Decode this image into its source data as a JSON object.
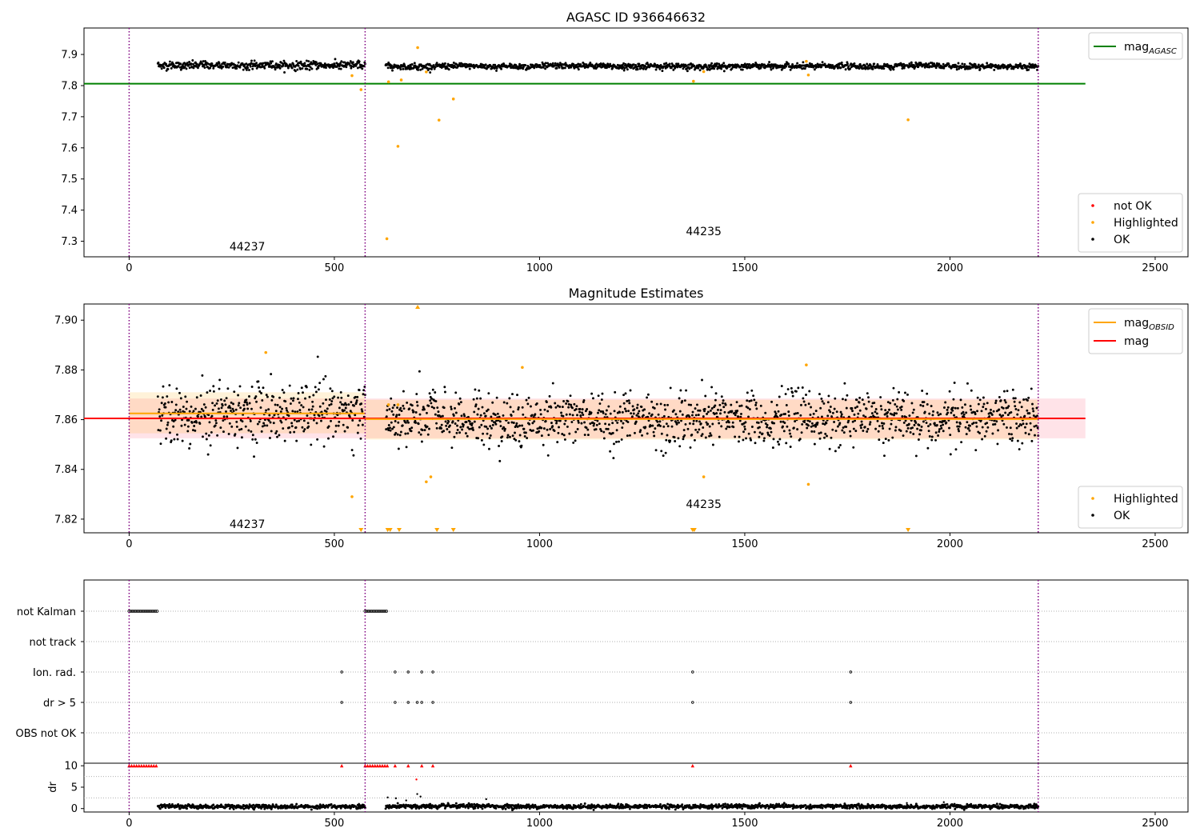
{
  "chart_data": [
    {
      "type": "scatter",
      "title": "AGASC ID 936646632",
      "xlim": [
        -110,
        2580
      ],
      "ylim": [
        7.25,
        7.985
      ],
      "xticks": [
        0,
        500,
        1000,
        1500,
        2000,
        2500
      ],
      "yticks": [
        7.3,
        7.4,
        7.5,
        7.6,
        7.7,
        7.8,
        7.9
      ],
      "grid": false,
      "obs_boundaries": [
        0,
        575,
        2215
      ],
      "obs_labels": [
        {
          "text": "44237",
          "x": 288,
          "y": 7.27
        },
        {
          "text": "44235",
          "x": 1400,
          "y": 7.32
        }
      ],
      "lines": [
        {
          "name": "mag_AGASC",
          "x": [
            -110,
            2330
          ],
          "y": [
            7.806,
            7.806
          ],
          "color": "#008000"
        }
      ],
      "ok_segments": [
        {
          "x0": 70,
          "x1": 575,
          "center": 7.865,
          "noise": 0.008,
          "count": 430
        },
        {
          "x0": 625,
          "x1": 2215,
          "center": 7.862,
          "noise": 0.006,
          "count": 1350
        }
      ],
      "highlighted_points": {
        "x": [
          543,
          565,
          628,
          632,
          655,
          663,
          703,
          724,
          755,
          790,
          1375,
          1400,
          1650,
          1655,
          1898
        ],
        "y": [
          7.832,
          7.787,
          7.308,
          7.812,
          7.605,
          7.818,
          7.922,
          7.844,
          7.689,
          7.757,
          7.814,
          7.845,
          7.878,
          7.834,
          7.69
        ]
      },
      "legend_lines": [
        {
          "label": "mag",
          "sub": "AGASC",
          "color": "#008000"
        }
      ],
      "legend_lines_position": "upper right",
      "legend_markers": [
        {
          "label": "not OK",
          "color": "#ff0000"
        },
        {
          "label": "Highlighted",
          "color": "#ffa500"
        },
        {
          "label": "OK",
          "color": "#000000"
        }
      ],
      "legend_markers_position": "lower right"
    },
    {
      "type": "scatter",
      "title": "Magnitude Estimates",
      "xlim": [
        -110,
        2580
      ],
      "ylim": [
        7.8145,
        7.9065
      ],
      "xticks": [
        0,
        500,
        1000,
        1500,
        2000,
        2500
      ],
      "yticks": [
        7.82,
        7.84,
        7.86,
        7.88,
        7.9
      ],
      "ytick_labels": [
        "7.82",
        "7.84",
        "7.86",
        "7.88",
        "7.90"
      ],
      "grid": false,
      "obs_boundaries": [
        0,
        575,
        2215
      ],
      "obs_labels": [
        {
          "text": "44237",
          "x": 288,
          "y": 7.8165
        },
        {
          "text": "44235",
          "x": 1400,
          "y": 7.8245
        }
      ],
      "bands": [
        {
          "x0": 0,
          "x1": 2330,
          "y0": 7.8525,
          "y1": 7.8685,
          "color": "#ffc0cb",
          "alpha": 0.45
        },
        {
          "x0": 0,
          "x1": 575,
          "y0": 7.8545,
          "y1": 7.871,
          "color": "#ffa500",
          "alpha": 0.15
        },
        {
          "x0": 575,
          "x1": 2215,
          "y0": 7.852,
          "y1": 7.868,
          "color": "#ffa500",
          "alpha": 0.15
        }
      ],
      "lines": [
        {
          "name": "mag",
          "x": [
            -110,
            2330
          ],
          "y": [
            7.8605,
            7.8605
          ],
          "color": "#ff0000"
        },
        {
          "name": "mag_OBSID",
          "x": [
            0,
            575
          ],
          "y": [
            7.8625,
            7.8625
          ],
          "color": "#ffa500"
        },
        {
          "name": "mag_OBSID",
          "x": [
            575,
            2215
          ],
          "y": [
            7.8602,
            7.8602
          ],
          "color": "#ffa500"
        }
      ],
      "ok_segments": [
        {
          "x0": 70,
          "x1": 575,
          "center": 7.8625,
          "noise": 0.0075,
          "count": 430
        },
        {
          "x0": 625,
          "x1": 2215,
          "center": 7.8602,
          "noise": 0.0065,
          "count": 1350
        }
      ],
      "highlighted_points": {
        "x": [
          333,
          543,
          632,
          655,
          724,
          735,
          958,
          1400,
          1650,
          1655
        ],
        "y": [
          7.887,
          7.829,
          7.866,
          7.866,
          7.835,
          7.837,
          7.881,
          7.837,
          7.882,
          7.834
        ]
      },
      "clipped_low_x": [
        565,
        630,
        636,
        658,
        750,
        790,
        1373,
        1377,
        1898
      ],
      "clipped_high_x": [
        703
      ],
      "legend_lines": [
        {
          "label": "mag",
          "sub": "OBSID",
          "color": "#ffa500"
        },
        {
          "label": "mag",
          "sub": "",
          "color": "#ff0000"
        }
      ],
      "legend_lines_position": "upper right",
      "legend_markers": [
        {
          "label": "Highlighted",
          "color": "#ffa500"
        },
        {
          "label": "OK",
          "color": "#000000"
        }
      ],
      "legend_markers_position": "lower right"
    },
    {
      "type": "scatter",
      "title": "",
      "xlim": [
        -110,
        2580
      ],
      "grid": true,
      "obs_boundaries": [
        0,
        575,
        2215
      ],
      "flag_rows": [
        {
          "label": "not Kalman",
          "ranges": [
            [
              0,
              68
            ],
            [
              575,
              630
            ]
          ],
          "x": []
        },
        {
          "label": "not track",
          "ranges": [],
          "x": []
        },
        {
          "label": "Ion. rad.",
          "ranges": [],
          "x": [
            518,
            648,
            680,
            713,
            740,
            1373,
            1758
          ]
        },
        {
          "label": "dr > 5",
          "ranges": [],
          "x": [
            518,
            648,
            680,
            702,
            713,
            740,
            1373,
            1758
          ]
        },
        {
          "label": "OBS not OK",
          "ranges": [],
          "x": []
        }
      ],
      "flag_marker_color": "#000000"
    },
    {
      "type": "scatter",
      "title": "",
      "ylabel": "dr",
      "xlim": [
        -110,
        2580
      ],
      "ylim": [
        -0.8,
        10.6
      ],
      "xticks": [
        0,
        500,
        1000,
        1500,
        2000,
        2500
      ],
      "yticks": [
        0,
        5,
        10
      ],
      "grid": true,
      "obs_boundaries": [
        0,
        575,
        2215
      ],
      "capped_value": 10,
      "capped_x": [
        0,
        6,
        12,
        18,
        24,
        30,
        36,
        42,
        48,
        54,
        60,
        66,
        518,
        575,
        581,
        587,
        593,
        599,
        605,
        611,
        617,
        623,
        629,
        648,
        680,
        713,
        740,
        1373,
        1758
      ],
      "ok_segments": [
        {
          "x0": 70,
          "x1": 575,
          "center": 0.5,
          "noise": 0.3,
          "count": 430
        },
        {
          "x0": 625,
          "x1": 2215,
          "center": 0.5,
          "noise": 0.3,
          "count": 1350
        }
      ],
      "outlier_points": {
        "x": [
          700,
          702,
          710,
          630,
          650,
          675,
          870,
          1895,
          1985,
          560
        ],
        "y": [
          6.8,
          3.4,
          2.8,
          2.6,
          2.4,
          1.9,
          2.2,
          1.3,
          1.5,
          1.1
        ]
      }
    }
  ]
}
